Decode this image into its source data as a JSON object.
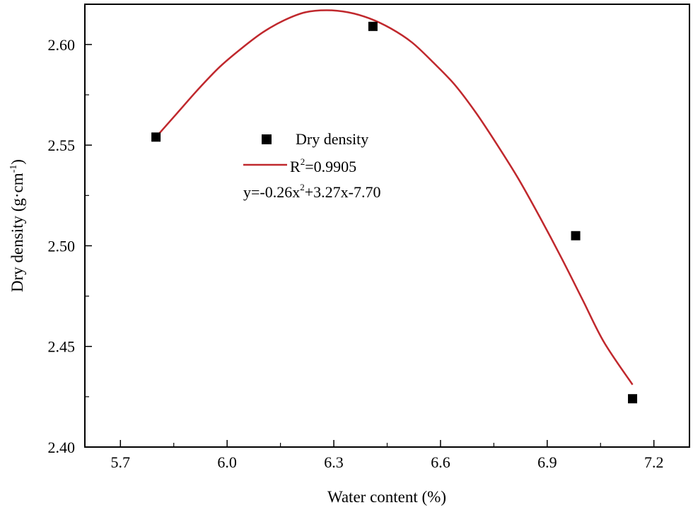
{
  "chart_data": {
    "type": "scatter",
    "title": "",
    "xlabel": "Water content (%)",
    "ylabel": "Dry density (g·cm⁻¹)",
    "ylabel_parts": {
      "base": "Dry density (g·cm",
      "sup": "-1",
      "end": ")"
    },
    "xlim": [
      5.6,
      7.3
    ],
    "ylim": [
      2.4,
      2.62
    ],
    "x_ticks": [
      5.7,
      6.0,
      6.3,
      6.6,
      6.9,
      7.2
    ],
    "x_tick_labels": [
      "5.7",
      "6.0",
      "6.3",
      "6.6",
      "6.9",
      "7.2"
    ],
    "y_ticks": [
      2.4,
      2.45,
      2.5,
      2.55,
      2.6
    ],
    "y_tick_labels": [
      "2.40",
      "2.45",
      "2.50",
      "2.55",
      "2.60"
    ],
    "series": [
      {
        "name": "Dry density",
        "kind": "scatter",
        "marker": "square",
        "color": "#000000",
        "x": [
          5.8,
          6.41,
          6.98,
          7.14
        ],
        "y": [
          2.554,
          2.609,
          2.505,
          2.424
        ]
      },
      {
        "name": "Fit",
        "kind": "line",
        "color": "#c0282d",
        "x": [
          5.8,
          5.86,
          5.92,
          5.98,
          6.04,
          6.1,
          6.16,
          6.22,
          6.28,
          6.34,
          6.4,
          6.46,
          6.52,
          6.58,
          6.64,
          6.7,
          6.76,
          6.82,
          6.88,
          6.94,
          7.0,
          7.06,
          7.14
        ],
        "y": [
          2.554,
          2.566,
          2.578,
          2.589,
          2.598,
          2.606,
          2.612,
          2.616,
          2.617,
          2.616,
          2.613,
          2.608,
          2.601,
          2.591,
          2.58,
          2.566,
          2.55,
          2.533,
          2.514,
          2.494,
          2.473,
          2.452,
          2.431
        ]
      }
    ],
    "legend": {
      "position": "upper-center",
      "marker_label": "Dry density",
      "r2_label": {
        "base": "R",
        "sup": "2",
        "rest": "=0.9905"
      },
      "equation_label": {
        "p1": "y=-0.26x",
        "sup": "2",
        "p2": "+3.27x-7.70"
      }
    },
    "colors": {
      "fit_line": "#c0282d",
      "marker": "#000000",
      "axis": "#000000"
    }
  }
}
